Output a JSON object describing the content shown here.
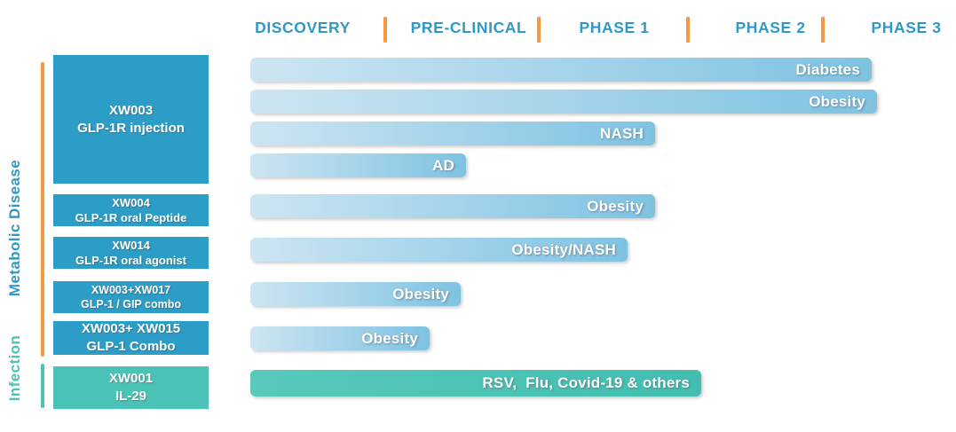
{
  "header": {
    "phases": [
      "DISCOVERY",
      "PRE-CLINICAL",
      "PHASE 1",
      "PHASE 2",
      "PHASE 3"
    ]
  },
  "groups": [
    {
      "name": "Metabolic Disease",
      "text_color": "#2e98c9",
      "line_color": "#f7993d"
    },
    {
      "name": "Infection",
      "text_color": "#4ac3b6",
      "line_color": "#4ac3b6"
    }
  ],
  "programs": [
    {
      "group": "Metabolic Disease",
      "code": "XW003",
      "description": "GLP-1R injection"
    },
    {
      "group": "Metabolic Disease",
      "code": "XW004",
      "description": "GLP-1R oral Peptide"
    },
    {
      "group": "Metabolic Disease",
      "code": "XW014",
      "description": "GLP-1R oral agonist"
    },
    {
      "group": "Metabolic Disease",
      "code": "XW003+XW017",
      "description": "GLP-1 / GIP combo"
    },
    {
      "group": "Metabolic Disease",
      "code": "XW003+ XW015",
      "description": "GLP-1 Combo"
    },
    {
      "group": "Infection",
      "code": "XW001",
      "description": "IL-29"
    }
  ],
  "colors": {
    "phase_text": "#2e98c9",
    "separator_orange": "#f7993d",
    "program_box_blue": "#2b9dc6",
    "program_box_teal": "#4ac3b6",
    "bar_gradient_start": "#cde5f2",
    "bar_gradient_end": "#7ec2e2",
    "teal_bar_start": "#58c9bc",
    "teal_bar_end": "#41beb0",
    "bar_text": "#ffffff"
  },
  "chart_data": {
    "type": "bar",
    "orientation": "horizontal",
    "title": "Drug development pipeline",
    "x_axis": {
      "labels": [
        "DISCOVERY",
        "PRE-CLINICAL",
        "PHASE 1",
        "PHASE 2",
        "PHASE 3"
      ],
      "range_phases": [
        0,
        5
      ]
    },
    "legend": "none",
    "grid": "off",
    "rows": [
      {
        "program": "XW003",
        "indication": "Diabetes",
        "stage_reached": "Phase 3",
        "progress_phases": 4.41
      },
      {
        "program": "XW003",
        "indication": "Obesity",
        "stage_reached": "Phase 3",
        "progress_phases": 4.45
      },
      {
        "program": "XW003",
        "indication": "NASH",
        "stage_reached": "Phase 1",
        "progress_phases": 2.79
      },
      {
        "program": "XW003",
        "indication": "AD",
        "stage_reached": "Pre-clinical",
        "progress_phases": 1.54
      },
      {
        "program": "XW004",
        "indication": "Obesity",
        "stage_reached": "Phase 1",
        "progress_phases": 2.79
      },
      {
        "program": "XW014",
        "indication": "Obesity/NASH",
        "stage_reached": "Phase 1",
        "progress_phases": 2.61
      },
      {
        "program": "XW003+XW017",
        "indication": "Obesity",
        "stage_reached": "Pre-clinical",
        "progress_phases": 1.5
      },
      {
        "program": "XW003+ XW015",
        "indication": "Obesity",
        "stage_reached": "Pre-clinical",
        "progress_phases": 1.3
      },
      {
        "program": "XW001",
        "indication": "RSV,  Flu, Covid-19 & others",
        "stage_reached": "Phase 2",
        "progress_phases": 3.11
      }
    ]
  }
}
